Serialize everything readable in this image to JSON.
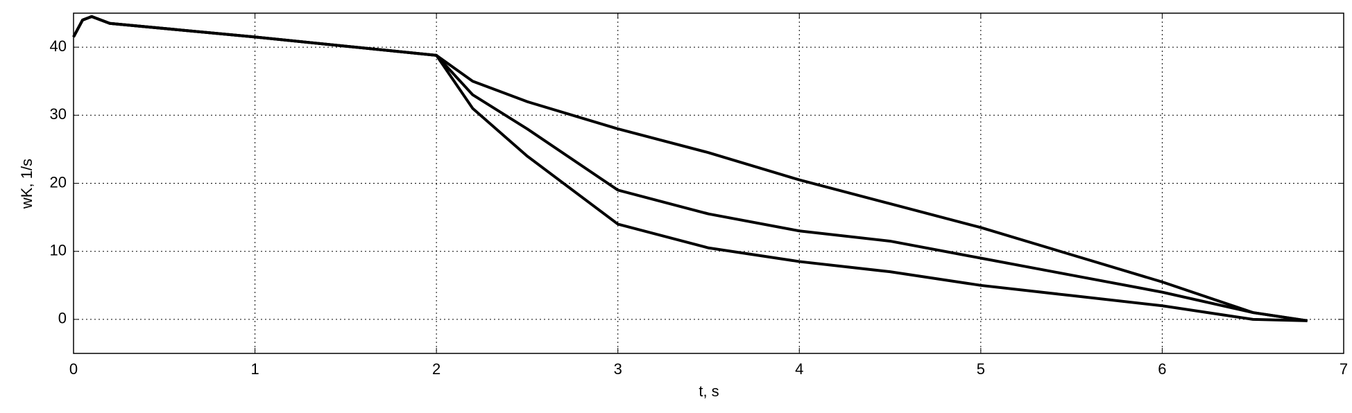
{
  "chart_data": {
    "type": "line",
    "xlabel": "t, s",
    "ylabel": "wK, 1/s",
    "x": [
      0,
      0.05,
      0.1,
      0.2,
      1,
      2,
      2.2,
      2.5,
      3,
      3.5,
      4,
      4.5,
      5,
      5.5,
      6,
      6.5,
      6.8
    ],
    "series": [
      {
        "color": "#000000",
        "values": [
          41.5,
          44,
          44.5,
          43.5,
          41.5,
          38.8,
          35,
          32,
          28,
          24.5,
          20.5,
          17,
          13.5,
          9.5,
          5.5,
          1,
          -0.2
        ]
      },
      {
        "color": "#000000",
        "values": [
          41.5,
          44,
          44.5,
          43.5,
          41.5,
          38.8,
          33,
          28,
          19,
          15.5,
          13,
          11.5,
          9,
          6.5,
          4,
          1,
          -0.2
        ]
      },
      {
        "color": "#000000",
        "values": [
          41.5,
          44,
          44.5,
          43.5,
          41.5,
          38.8,
          31,
          24,
          14,
          10.5,
          8.5,
          7,
          5,
          3.5,
          2,
          0,
          -0.2
        ]
      }
    ],
    "xlim": [
      0,
      7
    ],
    "ylim": [
      -5,
      45
    ],
    "xticks": [
      0,
      1,
      2,
      3,
      4,
      5,
      6,
      7
    ],
    "yticks": [
      0,
      10,
      20,
      30,
      40
    ],
    "grid": true
  }
}
